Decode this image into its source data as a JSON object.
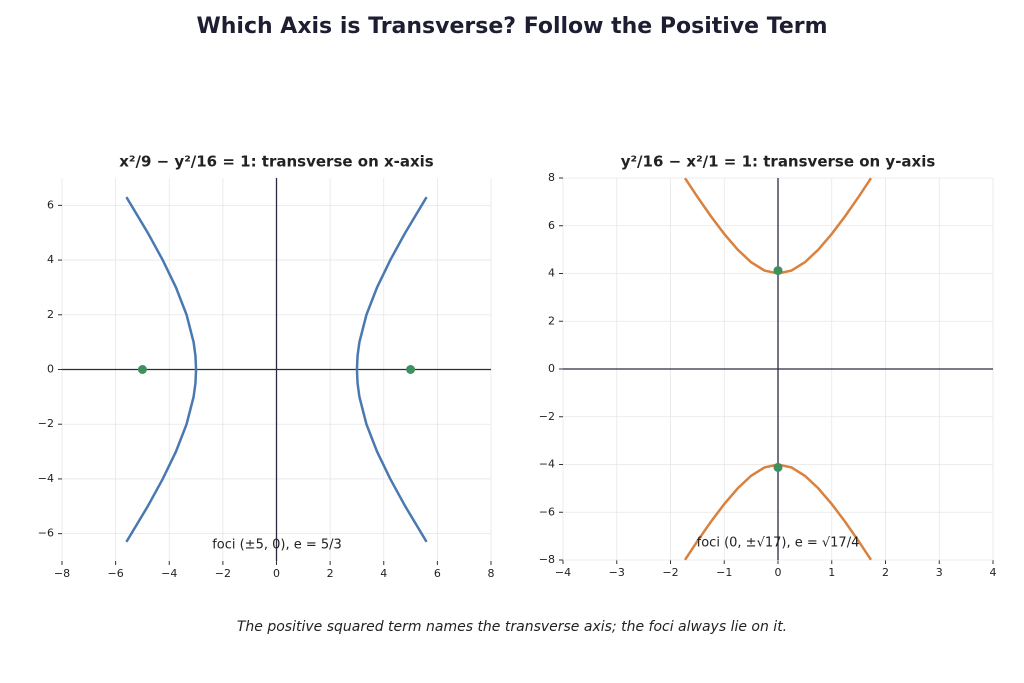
{
  "title": "Which Axis is Transverse? Follow the Positive Term",
  "caption": "The positive squared term names the transverse axis; the foci always lie on it.",
  "chart_data": [
    {
      "type": "line",
      "title": "x²/9 − y²/16 = 1: transverse on x-axis",
      "annotation": "foci (±5, 0),  e = 5/3",
      "xlim": [
        -8,
        8
      ],
      "ylim": [
        -7,
        7
      ],
      "grid": true,
      "xticks": [
        {
          "value": -8,
          "label": "−8"
        },
        {
          "value": -6,
          "label": "−6"
        },
        {
          "value": -4,
          "label": "−4"
        },
        {
          "value": -2,
          "label": "−2"
        },
        0,
        2,
        4,
        6,
        8
      ],
      "yticks": [
        {
          "value": -6,
          "label": "−6"
        },
        {
          "value": -4,
          "label": "−4"
        },
        {
          "value": -2,
          "label": "−2"
        },
        0,
        2,
        4,
        6
      ],
      "series": [
        {
          "color": "#4a78b0",
          "x": [
            5.597,
            4.802,
            4.243,
            3.75,
            3.354,
            3.092,
            3.023,
            3,
            3.023,
            3.092,
            3.354,
            3.75,
            4.243,
            4.802,
            5.597
          ],
          "values": [
            -6.3,
            -5,
            -4,
            -3,
            -2,
            -1,
            -0.5,
            0,
            0.5,
            1,
            2,
            3,
            4,
            5,
            6.3
          ]
        },
        {
          "color": "#4a78b0",
          "x": [
            -5.597,
            -4.802,
            -4.243,
            -3.75,
            -3.354,
            -3.092,
            -3.023,
            -3,
            -3.023,
            -3.092,
            -3.354,
            -3.75,
            -4.243,
            -4.802,
            -5.597
          ],
          "values": [
            -6.3,
            -5,
            -4,
            -3,
            -2,
            -1,
            -0.5,
            0,
            0.5,
            1,
            2,
            3,
            4,
            5,
            6.3
          ]
        }
      ],
      "foci": {
        "color": "#3f9060",
        "x": [
          -5,
          5
        ],
        "values": [
          0,
          0
        ]
      }
    },
    {
      "type": "line",
      "title": "y²/16 − x²/1 = 1: transverse on y-axis",
      "annotation": "foci (0, ±√17),  e = √17/4",
      "xlim": [
        -4,
        4
      ],
      "ylim": [
        -8,
        8
      ],
      "grid": true,
      "xticks": [
        {
          "value": -4,
          "label": "−4"
        },
        {
          "value": -3,
          "label": "−3"
        },
        {
          "value": -2,
          "label": "−2"
        },
        {
          "value": -1,
          "label": "−1"
        },
        0,
        1,
        2,
        3,
        4
      ],
      "yticks": [
        {
          "value": -8,
          "label": "−8"
        },
        {
          "value": -6,
          "label": "−6"
        },
        {
          "value": -4,
          "label": "−4"
        },
        {
          "value": -2,
          "label": "−2"
        },
        0,
        2,
        4,
        6,
        8
      ],
      "series": [
        {
          "color": "#d9813e",
          "x": [
            -1.73,
            -1.5,
            -1.25,
            -1,
            -0.75,
            -0.5,
            -0.25,
            0,
            0.25,
            0.5,
            0.75,
            1,
            1.25,
            1.5,
            1.73
          ],
          "values": [
            7.99,
            7.211,
            6.403,
            5.657,
            5,
            4.472,
            4.123,
            4,
            4.123,
            4.472,
            5,
            5.657,
            6.403,
            7.211,
            7.99
          ]
        },
        {
          "color": "#d9813e",
          "x": [
            -1.73,
            -1.5,
            -1.25,
            -1,
            -0.75,
            -0.5,
            -0.25,
            0,
            0.25,
            0.5,
            0.75,
            1,
            1.25,
            1.5,
            1.73
          ],
          "values": [
            -7.99,
            -7.211,
            -6.403,
            -5.657,
            -5,
            -4.472,
            -4.123,
            -4,
            -4.123,
            -4.472,
            -5,
            -5.657,
            -6.403,
            -7.211,
            -7.99
          ]
        }
      ],
      "foci": {
        "color": "#3f9060",
        "x": [
          0,
          0
        ],
        "values": [
          4.123,
          -4.123
        ]
      }
    }
  ]
}
